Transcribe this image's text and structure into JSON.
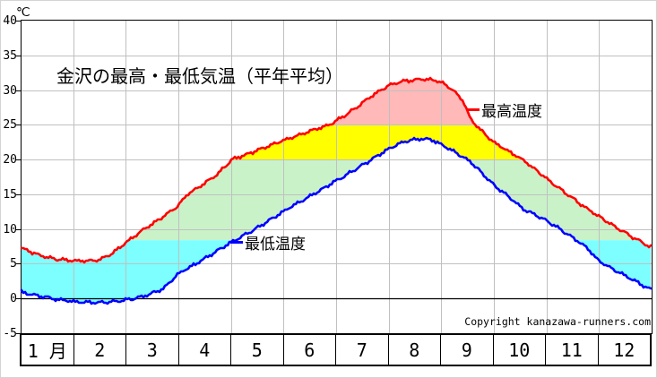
{
  "title": "金沢の最高・最低気温（平年平均）",
  "unit_label": "℃",
  "copyright": "Copyright kanazawa-runners.com",
  "legend": {
    "max": {
      "label": "最高温度",
      "color": "#ff0000"
    },
    "min": {
      "label": "最低温度",
      "color": "#0000ff"
    }
  },
  "axes": {
    "y": {
      "min": -5,
      "max": 40,
      "tick_step": 5,
      "tick_labels": [
        "40",
        "35",
        "30",
        "25",
        "20",
        "15",
        "10",
        "5",
        "0",
        "-5"
      ]
    },
    "x": {
      "month_labels": [
        "1 月",
        "2",
        "3",
        "4",
        "5",
        "6",
        "7",
        "8",
        "9",
        "10",
        "11",
        "12"
      ]
    }
  },
  "colors": {
    "max_line": "#ff0000",
    "min_line": "#0000ff",
    "band_hot": "#ffb9b9",
    "band_warm": "#ffff00",
    "band_mild": "#c9f2c9",
    "band_cool": "#7dffff",
    "grid": "#c0c0c0",
    "zero_line": "#000000",
    "border": "#000000",
    "background": "#ffffff"
  },
  "chart_data": {
    "type": "line",
    "title": "金沢の最高・最低気温（平年平均）",
    "ylabel": "℃",
    "ylim": [
      -5,
      40
    ],
    "grid": true,
    "legend_position": "inside",
    "x_categories": [
      "1月",
      "2",
      "3",
      "4",
      "5",
      "6",
      "7",
      "8",
      "9",
      "10",
      "11",
      "12"
    ],
    "series": [
      {
        "name": "最高温度",
        "color": "#ff0000",
        "monthly_values": [
          5.9,
          5.5,
          10.4,
          15.8,
          21.3,
          24.1,
          27.8,
          31.4,
          26.3,
          20.3,
          14.5,
          9.6
        ]
      },
      {
        "name": "最低温度",
        "color": "#0000ff",
        "monthly_values": [
          0.2,
          -0.5,
          1.5,
          5.6,
          10.5,
          14.3,
          18.8,
          22.9,
          20.0,
          13.4,
          8.8,
          3.1
        ]
      }
    ],
    "annual_extremes": {
      "max_peak": 31.6,
      "max_low": 5.4,
      "min_peak": 23.0,
      "min_low": -0.6
    },
    "temperature_bands": [
      {
        "name": "band_hot",
        "range": [
          25,
          40
        ],
        "color": "#ffb9b9"
      },
      {
        "name": "band_warm",
        "range": [
          20,
          25
        ],
        "color": "#ffff00"
      },
      {
        "name": "band_mild",
        "range": [
          8.4,
          20
        ],
        "color": "#c9f2c9"
      },
      {
        "name": "band_cool",
        "range": [
          -5,
          8.4
        ],
        "color": "#7dffff"
      }
    ],
    "daily_keypoints": {
      "max": [
        [
          0,
          7.2
        ],
        [
          12,
          6.1
        ],
        [
          22,
          5.6
        ],
        [
          32,
          5.4
        ],
        [
          45,
          5.5
        ],
        [
          52,
          6.4
        ],
        [
          59,
          7.8
        ],
        [
          70,
          9.8
        ],
        [
          80,
          11.4
        ],
        [
          91,
          13.4
        ],
        [
          96,
          15.0
        ],
        [
          105,
          16.4
        ],
        [
          113,
          17.8
        ],
        [
          122,
          20.0
        ],
        [
          132,
          20.9
        ],
        [
          142,
          21.8
        ],
        [
          152,
          22.8
        ],
        [
          165,
          23.9
        ],
        [
          178,
          25.0
        ],
        [
          182,
          25.5
        ],
        [
          193,
          27.3
        ],
        [
          203,
          29.2
        ],
        [
          213,
          30.7
        ],
        [
          222,
          31.3
        ],
        [
          232,
          31.6
        ],
        [
          240,
          31.4
        ],
        [
          245,
          30.9
        ],
        [
          250,
          30.0
        ],
        [
          256,
          28.4
        ],
        [
          260,
          25.9
        ],
        [
          263,
          25.0
        ],
        [
          268,
          23.8
        ],
        [
          274,
          22.4
        ],
        [
          282,
          21.2
        ],
        [
          291,
          19.9
        ],
        [
          298,
          18.5
        ],
        [
          305,
          17.1
        ],
        [
          315,
          15.2
        ],
        [
          325,
          13.4
        ],
        [
          334,
          11.9
        ],
        [
          344,
          10.3
        ],
        [
          354,
          8.8
        ],
        [
          360,
          8.0
        ],
        [
          365,
          7.3
        ]
      ],
      "min": [
        [
          0,
          0.9
        ],
        [
          12,
          0.3
        ],
        [
          22,
          -0.2
        ],
        [
          32,
          -0.5
        ],
        [
          42,
          -0.6
        ],
        [
          52,
          -0.5
        ],
        [
          59,
          -0.3
        ],
        [
          66,
          0.0
        ],
        [
          74,
          0.6
        ],
        [
          82,
          1.4
        ],
        [
          91,
          3.6
        ],
        [
          101,
          5.0
        ],
        [
          111,
          6.5
        ],
        [
          122,
          8.2
        ],
        [
          131,
          9.4
        ],
        [
          141,
          10.8
        ],
        [
          152,
          12.6
        ],
        [
          162,
          14.0
        ],
        [
          172,
          15.4
        ],
        [
          182,
          16.9
        ],
        [
          193,
          18.5
        ],
        [
          204,
          20.2
        ],
        [
          213,
          21.6
        ],
        [
          219,
          22.3
        ],
        [
          225,
          22.8
        ],
        [
          232,
          23.0
        ],
        [
          238,
          22.8
        ],
        [
          243,
          22.2
        ],
        [
          250,
          21.2
        ],
        [
          256,
          20.3
        ],
        [
          260,
          19.7
        ],
        [
          267,
          18.0
        ],
        [
          274,
          16.2
        ],
        [
          281,
          14.9
        ],
        [
          291,
          12.8
        ],
        [
          298,
          12.0
        ],
        [
          304,
          11.2
        ],
        [
          310,
          10.3
        ],
        [
          316,
          9.3
        ],
        [
          322,
          8.3
        ],
        [
          328,
          7.2
        ],
        [
          334,
          5.5
        ],
        [
          344,
          4.0
        ],
        [
          354,
          2.7
        ],
        [
          360,
          1.9
        ],
        [
          365,
          1.2
        ]
      ]
    }
  }
}
